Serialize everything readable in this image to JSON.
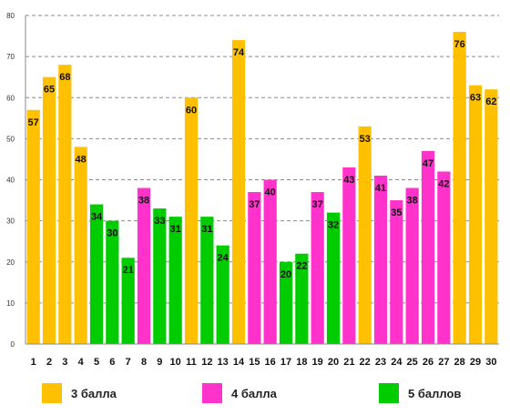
{
  "chart_data": {
    "type": "bar",
    "categories": [
      "1",
      "2",
      "3",
      "4",
      "5",
      "6",
      "7",
      "8",
      "9",
      "10",
      "11",
      "12",
      "13",
      "14",
      "15",
      "16",
      "17",
      "18",
      "19",
      "20",
      "21",
      "22",
      "23",
      "24",
      "25",
      "26",
      "27",
      "28",
      "29",
      "30"
    ],
    "values": [
      57,
      65,
      68,
      48,
      34,
      30,
      21,
      38,
      33,
      31,
      60,
      31,
      24,
      74,
      37,
      40,
      20,
      22,
      37,
      32,
      43,
      53,
      41,
      35,
      38,
      47,
      42,
      76,
      63,
      62
    ],
    "bar_groups": [
      0,
      0,
      0,
      0,
      2,
      2,
      2,
      1,
      2,
      2,
      0,
      2,
      2,
      0,
      1,
      1,
      2,
      2,
      1,
      2,
      1,
      0,
      1,
      1,
      1,
      1,
      1,
      0,
      0,
      0
    ],
    "value_labels": [
      "57",
      "65",
      "68",
      "48",
      "34",
      "30",
      "21",
      "38",
      "33",
      "31",
      "60",
      "31",
      "24",
      "74",
      "37",
      "40",
      "20",
      "22",
      "37",
      "32",
      "43",
      "53",
      "41",
      "35",
      "38",
      "47",
      "42",
      "76",
      "63",
      "62"
    ],
    "y_ticks": [
      "0",
      "10",
      "20",
      "30",
      "40",
      "50",
      "60",
      "70",
      "80"
    ],
    "ylim": [
      0,
      80
    ],
    "grid": true,
    "legend_position": "bottom",
    "series": [
      {
        "name": "3 балла",
        "color": "#FFC000"
      },
      {
        "name": "4 балла",
        "color": "#FF33CC"
      },
      {
        "name": "5 баллов",
        "color": "#00CC00"
      }
    ]
  }
}
